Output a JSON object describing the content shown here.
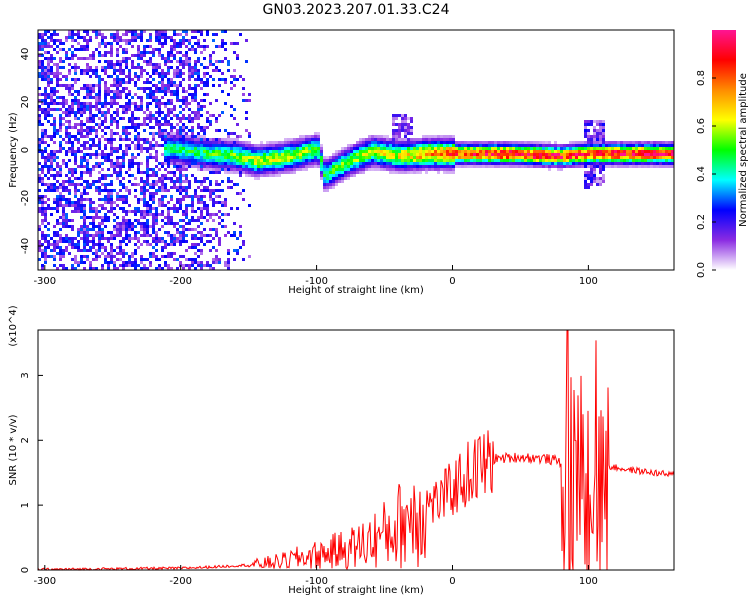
{
  "title": "GN03.2023.207.01.33.C24",
  "charts": {
    "spectrogram": {
      "type": "heatmap",
      "xlabel": "Height of straight line (km)",
      "ylabel": "Frequency (Hz)",
      "xlim": [
        -305,
        163
      ],
      "ylim": [
        -50,
        50
      ],
      "xticks": [
        "-300",
        "-200",
        "-100",
        "0",
        "100"
      ],
      "xtick_values": [
        -300,
        -200,
        -100,
        0,
        100
      ],
      "yticks": [
        "-40",
        "-20",
        "0",
        "20",
        "40"
      ],
      "ytick_values": [
        -40,
        -20,
        0,
        20,
        40
      ],
      "colorbar": {
        "label": "Normalized spectral amplitude",
        "ticks": [
          "0.0",
          "0.2",
          "0.4",
          "0.6",
          "0.8"
        ],
        "tick_values": [
          0.0,
          0.2,
          0.4,
          0.6,
          0.8
        ],
        "range": [
          0,
          1
        ],
        "colormap": [
          "#ffffff",
          "#8a2be2",
          "#0000ff",
          "#00ffff",
          "#00ff00",
          "#ffff00",
          "#ff8c00",
          "#ff0000",
          "#ff1493"
        ]
      },
      "noise_region_x": [
        -305,
        -160
      ],
      "signal_ridge": [
        {
          "x": -205,
          "f": 1,
          "amp": 0.45
        },
        {
          "x": -180,
          "f": -1,
          "amp": 0.5
        },
        {
          "x": -160,
          "f": -2,
          "amp": 0.55
        },
        {
          "x": -145,
          "f": -4,
          "amp": 0.6
        },
        {
          "x": -120,
          "f": -2,
          "amp": 0.6
        },
        {
          "x": -100,
          "f": 1,
          "amp": 0.55
        },
        {
          "x": -95,
          "f": -10,
          "amp": 0.5
        },
        {
          "x": -80,
          "f": -5,
          "amp": 0.55
        },
        {
          "x": -60,
          "f": 0,
          "amp": 0.6
        },
        {
          "x": -40,
          "f": -2,
          "amp": 0.65
        },
        {
          "x": -20,
          "f": -1,
          "amp": 0.75
        },
        {
          "x": 0,
          "f": -1,
          "amp": 0.85
        },
        {
          "x": 40,
          "f": -1,
          "amp": 0.95
        },
        {
          "x": 80,
          "f": -2,
          "amp": 0.9
        },
        {
          "x": 100,
          "f": -1,
          "amp": 0.9
        },
        {
          "x": 130,
          "f": -1,
          "amp": 0.95
        },
        {
          "x": 163,
          "f": -1,
          "amp": 0.95
        }
      ]
    },
    "snr": {
      "type": "line",
      "xlabel": "Height of straight line (km)",
      "ylabel": "SNR (10 * v/v)",
      "scale_label": "(x10^4)",
      "xlim": [
        -305,
        163
      ],
      "ylim": [
        0,
        3.7
      ],
      "xticks": [
        "-300",
        "-200",
        "-100",
        "0",
        "100"
      ],
      "xtick_values": [
        -300,
        -200,
        -100,
        0,
        100
      ],
      "yticks": [
        "0",
        "1",
        "2",
        "3"
      ],
      "ytick_values": [
        0,
        1,
        2,
        3
      ],
      "color": "#ff0000",
      "series": [
        {
          "x": [
            -305,
            -250,
            -200,
            -175,
            -150,
            -125,
            -110,
            -100,
            -90,
            -80,
            -70,
            -60,
            -50,
            -40,
            -30,
            -20,
            -10,
            0,
            10,
            20,
            30,
            50,
            70,
            85,
            90,
            95,
            100,
            105,
            110,
            115,
            130,
            150,
            163
          ],
          "y": [
            0.01,
            0.02,
            0.03,
            0.05,
            0.08,
            0.15,
            0.22,
            0.25,
            0.3,
            0.35,
            0.4,
            0.5,
            0.6,
            0.75,
            0.95,
            1.05,
            1.1,
            1.3,
            1.5,
            1.65,
            1.72,
            1.75,
            1.72,
            1.65,
            1.75,
            1.8,
            1.7,
            1.6,
            1.55,
            1.6,
            1.55,
            1.5,
            1.47
          ]
        }
      ]
    }
  }
}
